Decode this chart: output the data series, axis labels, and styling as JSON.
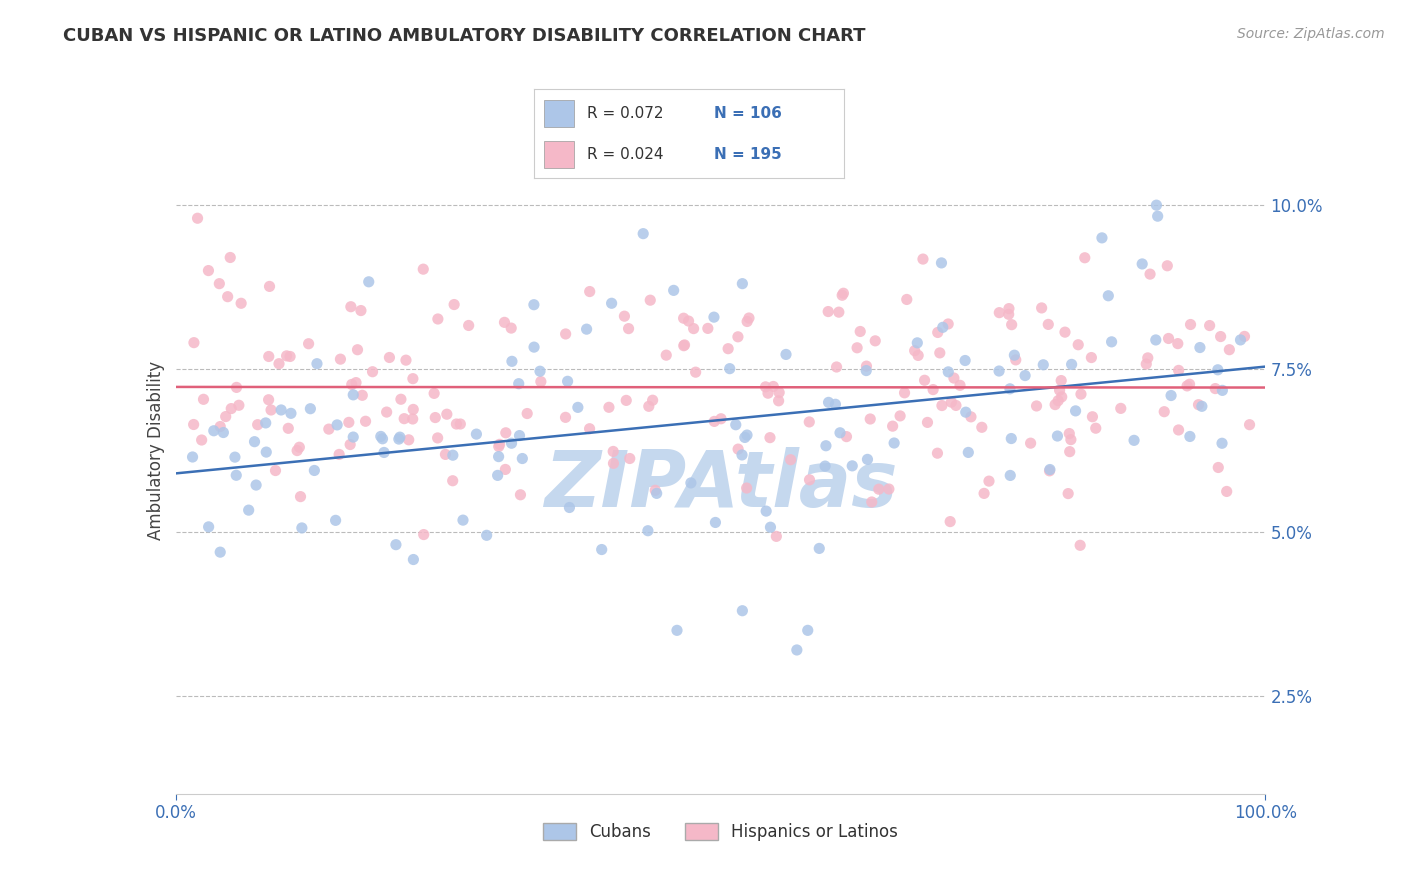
{
  "title": "CUBAN VS HISPANIC OR LATINO AMBULATORY DISABILITY CORRELATION CHART",
  "source_text": "Source: ZipAtlas.com",
  "ylabel": "Ambulatory Disability",
  "legend": {
    "blue_r": "R = 0.072",
    "blue_n": "N = 106",
    "pink_r": "R = 0.024",
    "pink_n": "N = 195"
  },
  "blue_color": "#adc6e8",
  "blue_line_color": "#3b6fb5",
  "pink_color": "#f5b8c8",
  "pink_line_color": "#e0607a",
  "watermark_color": "#c5d8ee",
  "background_color": "#ffffff",
  "grid_color": "#bbbbbb",
  "title_color": "#333333",
  "tick_color": "#3b6fb5",
  "ylabel_color": "#444444",
  "source_color": "#999999",
  "xlim": [
    0.0,
    100.0
  ],
  "ylim": [
    1.0,
    11.5
  ],
  "yticks": [
    2.5,
    5.0,
    7.5,
    10.0
  ],
  "xticks": [
    0.0,
    100.0
  ],
  "blue_seed": 42,
  "pink_seed": 99,
  "n_blue": 106,
  "n_pink": 195,
  "blue_intercept": 5.8,
  "blue_slope": 0.018,
  "blue_noise": 1.1,
  "pink_intercept": 6.9,
  "pink_slope": 0.003,
  "pink_noise": 0.85,
  "marker_size": 65,
  "line_width": 1.8
}
